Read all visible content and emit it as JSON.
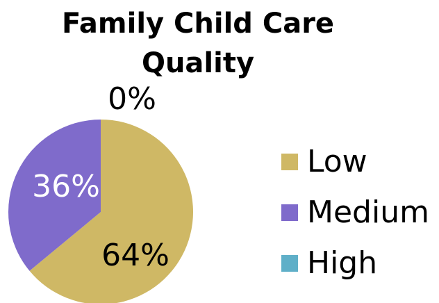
{
  "chart_data": {
    "type": "pie",
    "title": "Family Child Care Quality",
    "categories": [
      "Low",
      "Medium",
      "High"
    ],
    "values": [
      64,
      36,
      0
    ],
    "value_labels": [
      "64%",
      "36%",
      "0%"
    ],
    "colors": [
      "#cfb865",
      "#7f6bcb",
      "#5fafc8"
    ],
    "legend": "right"
  }
}
